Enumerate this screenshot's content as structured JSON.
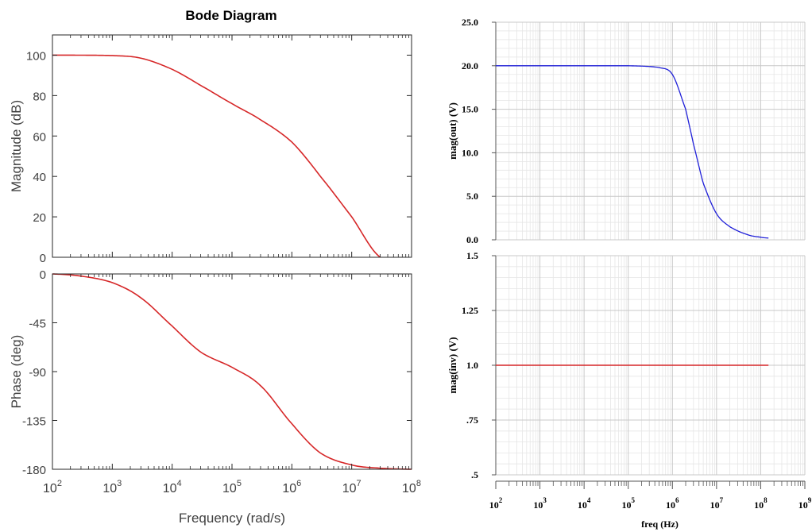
{
  "colors": {
    "matlab_axis": "#262626",
    "matlab_grid": "#d9d9d9",
    "matlab_curve": "#d62728",
    "spice_axis": "#555555",
    "spice_grid_major": "#c8c8c8",
    "spice_grid_minor": "#e6e6e6",
    "spice_out": "#1f1fd8",
    "spice_inv": "#d62728"
  },
  "chart_data": [
    {
      "type": "line",
      "title": "Bode Diagram",
      "xlabel": "Frequency  (rad/s)",
      "ylabel": "Magnitude (dB)",
      "xscale": "log",
      "xlim": [
        100,
        100000000
      ],
      "ylim": [
        0,
        110
      ],
      "xticks": [
        100,
        1000,
        10000,
        100000,
        1000000,
        10000000,
        100000000
      ],
      "xtick_labels": [
        {
          "base": "10",
          "exp": "2"
        },
        {
          "base": "10",
          "exp": "3"
        },
        {
          "base": "10",
          "exp": "4"
        },
        {
          "base": "10",
          "exp": "5"
        },
        {
          "base": "10",
          "exp": "6"
        },
        {
          "base": "10",
          "exp": "7"
        },
        {
          "base": "10",
          "exp": "8"
        }
      ],
      "yticks": [
        0,
        20,
        40,
        60,
        80,
        100
      ],
      "ytick_labels": [
        "0",
        "20",
        "40",
        "60",
        "80",
        "100"
      ],
      "series": [
        {
          "x": [
            100,
            1000,
            3000,
            10000,
            30000,
            100000,
            300000,
            1000000,
            3000000,
            10000000,
            30000000
          ],
          "y": [
            100,
            99.8,
            98.5,
            93,
            85,
            76,
            68,
            57,
            40,
            20,
            0
          ]
        }
      ]
    },
    {
      "type": "line",
      "xlabel": "Frequency  (rad/s)",
      "ylabel": "Phase (deg)",
      "xscale": "log",
      "xlim": [
        100,
        100000000
      ],
      "ylim": [
        -180,
        0
      ],
      "yticks": [
        -180,
        -135,
        -90,
        -45,
        0
      ],
      "ytick_labels": [
        "-180",
        "-135",
        "-90",
        "-45",
        "0"
      ],
      "series": [
        {
          "x": [
            100,
            300,
            1000,
            3000,
            10000,
            30000,
            100000,
            300000,
            1000000,
            3000000,
            10000000,
            30000000,
            100000000
          ],
          "y": [
            0,
            -2,
            -8,
            -22,
            -48,
            -72,
            -86,
            -103,
            -138,
            -165,
            -176,
            -179,
            -180
          ]
        }
      ]
    },
    {
      "type": "line",
      "ylabel": "mag(out) (V)",
      "xscale": "log",
      "xlim": [
        100,
        1000000000
      ],
      "ylim": [
        0,
        25
      ],
      "yticks": [
        0,
        5,
        10,
        15,
        20,
        25
      ],
      "ytick_labels": [
        "0.0",
        "5.0",
        "10.0",
        "15.0",
        "20.0",
        "25.0"
      ],
      "series": [
        {
          "x": [
            100,
            100000,
            500000,
            1000000,
            2000000,
            3000000,
            5000000,
            10000000,
            20000000,
            50000000,
            100000000,
            150000000
          ],
          "y": [
            20,
            20,
            19.8,
            19,
            15,
            11,
            6.5,
            3,
            1.5,
            0.6,
            0.3,
            0.2
          ]
        }
      ]
    },
    {
      "type": "line",
      "xlabel": "freq (Hz)",
      "ylabel": "mag(inv) (V)",
      "xscale": "log",
      "xlim": [
        100,
        1000000000
      ],
      "ylim": [
        0.5,
        1.5
      ],
      "xticks": [
        100,
        1000,
        10000,
        100000,
        1000000,
        10000000,
        100000000,
        1000000000
      ],
      "xtick_labels": [
        {
          "base": "10",
          "exp": "2"
        },
        {
          "base": "10",
          "exp": "3"
        },
        {
          "base": "10",
          "exp": "4"
        },
        {
          "base": "10",
          "exp": "5"
        },
        {
          "base": "10",
          "exp": "6"
        },
        {
          "base": "10",
          "exp": "7"
        },
        {
          "base": "10",
          "exp": "8"
        },
        {
          "base": "10",
          "exp": "9"
        }
      ],
      "yticks": [
        0.5,
        0.75,
        1.0,
        1.25,
        1.5
      ],
      "ytick_labels": [
        ".5",
        ".75",
        "1.0",
        "1.25",
        "1.5"
      ],
      "series": [
        {
          "x": [
            100,
            150000000
          ],
          "y": [
            1,
            1
          ]
        }
      ]
    }
  ]
}
